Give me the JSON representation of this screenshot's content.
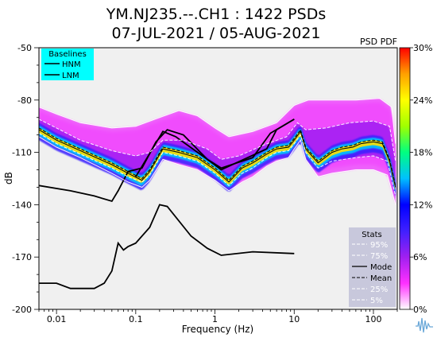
{
  "chart_data": {
    "type": "heatmap",
    "title_line1": "YM.NJ235.--.CH1 : 1422 PSDs",
    "title_line2": "07-JUL-2021 / 05-AUG-2021",
    "xlabel": "Frequency (Hz)",
    "ylabel": "dB",
    "x_scale": "log",
    "xlim": [
      0.006,
      200
    ],
    "ylim": [
      -200,
      -50
    ],
    "x_ticks": [
      {
        "value": 0.01,
        "label": "0.01"
      },
      {
        "value": 0.1,
        "label": "0.1"
      },
      {
        "value": 1,
        "label": "1"
      },
      {
        "value": 10,
        "label": "10"
      },
      {
        "value": 100,
        "label": "100"
      }
    ],
    "y_ticks": [
      {
        "value": -50,
        "label": "-50"
      },
      {
        "value": -80,
        "label": "-80"
      },
      {
        "value": -110,
        "label": "-110"
      },
      {
        "value": -140,
        "label": "-140"
      },
      {
        "value": -170,
        "label": "-170"
      },
      {
        "value": -200,
        "label": "-200"
      }
    ],
    "colorbar": {
      "title": "PSD PDF",
      "range": [
        0,
        30
      ],
      "colors": [
        "#ffffff",
        "#ff30ff",
        "#a020f0",
        "#4020ff",
        "#0000ff",
        "#00c0ff",
        "#00ff80",
        "#a0ff00",
        "#ffff00",
        "#ffa000",
        "#ff0000"
      ],
      "ticks": [
        {
          "value": 0,
          "label": "0%"
        },
        {
          "value": 6,
          "label": "6%"
        },
        {
          "value": 12,
          "label": "12%"
        },
        {
          "value": 18,
          "label": "18%"
        },
        {
          "value": 24,
          "label": "24%"
        },
        {
          "value": 30,
          "label": "30%"
        }
      ]
    },
    "baselines_legend": {
      "title": "Baselines",
      "entries": [
        "HNM",
        "LNM"
      ],
      "placement": "top-left",
      "background": "#00ffff"
    },
    "stats_legend": {
      "title": "Stats",
      "entries": [
        "95%",
        "75%",
        "Mode",
        "Mean",
        "25%",
        "5%"
      ],
      "placement": "bottom-right",
      "background": "#c8c8dc"
    },
    "plot_background": "#f0f0f0",
    "series": [
      {
        "name": "HNM",
        "color": "#000000",
        "points": [
          [
            0.1,
            -124
          ],
          [
            0.22,
            -98
          ],
          [
            0.32,
            -101
          ],
          [
            0.8,
            -114
          ],
          [
            1.2,
            -120
          ],
          [
            4.5,
            -108
          ],
          [
            6.0,
            -97
          ],
          [
            10,
            -91
          ]
        ]
      },
      {
        "name": "LNM",
        "color": "#000000",
        "points": [
          [
            0.006,
            -185
          ],
          [
            0.01,
            -185
          ],
          [
            0.015,
            -188
          ],
          [
            0.03,
            -188
          ],
          [
            0.04,
            -185
          ],
          [
            0.05,
            -178
          ],
          [
            0.06,
            -162
          ],
          [
            0.07,
            -166
          ],
          [
            0.08,
            -164
          ],
          [
            0.1,
            -162
          ],
          [
            0.15,
            -153
          ],
          [
            0.2,
            -140
          ],
          [
            0.25,
            -141
          ],
          [
            0.5,
            -158
          ],
          [
            0.8,
            -165
          ],
          [
            1.2,
            -169
          ],
          [
            3,
            -167
          ],
          [
            10,
            -168
          ]
        ]
      },
      {
        "name": "",
        "color": "#000000",
        "points": [
          [
            0.006,
            -129
          ],
          [
            0.015,
            -132
          ],
          [
            0.03,
            -135
          ],
          [
            0.05,
            -138
          ],
          [
            0.06,
            -132
          ],
          [
            0.08,
            -121
          ],
          [
            0.12,
            -119
          ],
          [
            0.18,
            -104
          ],
          [
            0.25,
            -97
          ],
          [
            0.4,
            -100
          ],
          [
            0.8,
            -114
          ],
          [
            1.2,
            -119
          ],
          [
            3,
            -113
          ],
          [
            5,
            -99
          ],
          [
            10,
            -91
          ]
        ]
      },
      {
        "name": "Mode",
        "color": "#000000",
        "points": [
          [
            0.006,
            -97
          ],
          [
            0.01,
            -103
          ],
          [
            0.02,
            -109
          ],
          [
            0.05,
            -117
          ],
          [
            0.08,
            -122
          ],
          [
            0.12,
            -126
          ],
          [
            0.15,
            -121
          ],
          [
            0.22,
            -108
          ],
          [
            0.35,
            -110
          ],
          [
            0.6,
            -113
          ],
          [
            1.0,
            -120
          ],
          [
            1.5,
            -127
          ],
          [
            2.2,
            -119
          ],
          [
            3.0,
            -116
          ],
          [
            4.5,
            -111
          ],
          [
            6.0,
            -108
          ],
          [
            8.5,
            -107
          ],
          [
            10,
            -103
          ],
          [
            12,
            -98
          ],
          [
            14,
            -108
          ],
          [
            20,
            -116
          ],
          [
            30,
            -110
          ],
          [
            40,
            -108
          ],
          [
            55,
            -107
          ],
          [
            70,
            -105
          ],
          [
            100,
            -104
          ],
          [
            130,
            -105
          ],
          [
            160,
            -115
          ],
          [
            190,
            -130
          ]
        ]
      },
      {
        "name": "Mean",
        "color": "#000000",
        "points": [
          [
            0.006,
            -96
          ],
          [
            0.01,
            -102
          ],
          [
            0.02,
            -108
          ],
          [
            0.05,
            -116
          ],
          [
            0.08,
            -121
          ],
          [
            0.12,
            -125
          ],
          [
            0.15,
            -120
          ],
          [
            0.22,
            -107
          ],
          [
            0.35,
            -109
          ],
          [
            0.6,
            -112
          ],
          [
            1.0,
            -119
          ],
          [
            1.5,
            -126
          ],
          [
            2.2,
            -118
          ],
          [
            3.0,
            -115
          ],
          [
            4.5,
            -110
          ],
          [
            6.0,
            -107
          ],
          [
            8.5,
            -106
          ],
          [
            10,
            -102
          ],
          [
            12,
            -97
          ],
          [
            14,
            -107
          ],
          [
            20,
            -115
          ],
          [
            30,
            -109
          ],
          [
            40,
            -107
          ],
          [
            55,
            -106
          ],
          [
            70,
            -104
          ],
          [
            100,
            -103
          ],
          [
            130,
            -104
          ],
          [
            160,
            -114
          ],
          [
            190,
            -129
          ]
        ]
      },
      {
        "name": "95%",
        "color": "#ffffff",
        "points": [
          [
            0.006,
            -84
          ],
          [
            0.01,
            -88
          ],
          [
            0.02,
            -93
          ],
          [
            0.05,
            -96
          ],
          [
            0.1,
            -95
          ],
          [
            0.2,
            -90
          ],
          [
            0.35,
            -86
          ],
          [
            0.6,
            -89
          ],
          [
            1.0,
            -96
          ],
          [
            1.5,
            -101
          ],
          [
            3.0,
            -98
          ],
          [
            6,
            -93
          ],
          [
            10,
            -83
          ],
          [
            15,
            -80
          ],
          [
            30,
            -80
          ],
          [
            60,
            -80
          ],
          [
            120,
            -79
          ],
          [
            170,
            -84
          ],
          [
            190,
            -105
          ]
        ]
      },
      {
        "name": "75%",
        "color": "#ffffff",
        "points": [
          [
            0.006,
            -91
          ],
          [
            0.01,
            -96
          ],
          [
            0.02,
            -103
          ],
          [
            0.05,
            -109
          ],
          [
            0.1,
            -112
          ],
          [
            0.15,
            -110
          ],
          [
            0.22,
            -103
          ],
          [
            0.4,
            -103
          ],
          [
            0.8,
            -108
          ],
          [
            1.2,
            -114
          ],
          [
            2,
            -112
          ],
          [
            4,
            -106
          ],
          [
            8,
            -101
          ],
          [
            11,
            -93
          ],
          [
            14,
            -97
          ],
          [
            25,
            -96
          ],
          [
            50,
            -93
          ],
          [
            100,
            -92
          ],
          [
            160,
            -95
          ],
          [
            190,
            -115
          ]
        ]
      },
      {
        "name": "25%",
        "color": "#ffffff",
        "points": [
          [
            0.006,
            -99
          ],
          [
            0.01,
            -105
          ],
          [
            0.02,
            -111
          ],
          [
            0.05,
            -119
          ],
          [
            0.08,
            -124
          ],
          [
            0.12,
            -127
          ],
          [
            0.15,
            -123
          ],
          [
            0.22,
            -110
          ],
          [
            0.35,
            -112
          ],
          [
            0.6,
            -115
          ],
          [
            1.0,
            -122
          ],
          [
            1.5,
            -129
          ],
          [
            2.2,
            -122
          ],
          [
            3.0,
            -119
          ],
          [
            4.5,
            -113
          ],
          [
            6,
            -110
          ],
          [
            8.5,
            -109
          ],
          [
            10,
            -105
          ],
          [
            12,
            -100
          ],
          [
            14,
            -110
          ],
          [
            20,
            -119
          ],
          [
            30,
            -115
          ],
          [
            60,
            -113
          ],
          [
            100,
            -112
          ],
          [
            150,
            -115
          ],
          [
            190,
            -135
          ]
        ]
      },
      {
        "name": "5%",
        "color": "#ffffff",
        "points": [
          [
            0.006,
            -101
          ],
          [
            0.01,
            -107
          ],
          [
            0.02,
            -113
          ],
          [
            0.05,
            -122
          ],
          [
            0.08,
            -127
          ],
          [
            0.12,
            -130
          ],
          [
            0.15,
            -126
          ],
          [
            0.22,
            -114
          ],
          [
            0.35,
            -117
          ],
          [
            0.6,
            -120
          ],
          [
            1.0,
            -126
          ],
          [
            1.5,
            -132
          ],
          [
            2.2,
            -127
          ],
          [
            3.0,
            -124
          ],
          [
            4.5,
            -118
          ],
          [
            6,
            -115
          ],
          [
            8.5,
            -113
          ],
          [
            10,
            -108
          ],
          [
            12,
            -103
          ],
          [
            14,
            -114
          ],
          [
            20,
            -124
          ],
          [
            30,
            -122
          ],
          [
            60,
            -120
          ],
          [
            100,
            -120
          ],
          [
            150,
            -123
          ],
          [
            190,
            -140
          ]
        ]
      }
    ]
  }
}
